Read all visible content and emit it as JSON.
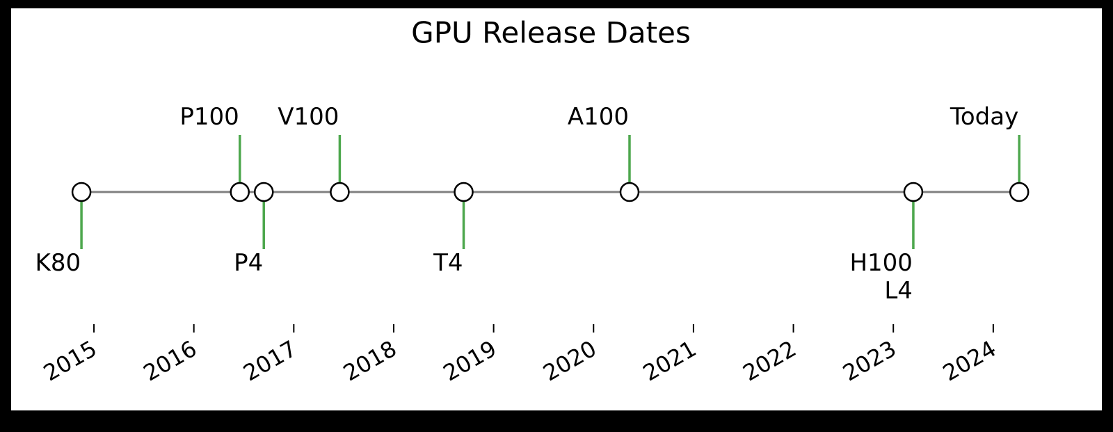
{
  "chart_data": {
    "type": "timeline",
    "title": "GPU Release Dates",
    "categories": [
      "K80",
      "P100",
      "P4",
      "V100",
      "T4",
      "A100",
      "H100\nL4",
      "Today"
    ],
    "x": [
      2014.875,
      2016.46,
      2016.7,
      2017.46,
      2018.7,
      2020.36,
      2023.2,
      2024.26
    ],
    "levels": [
      -1,
      1,
      -1,
      1,
      -1,
      1,
      -1,
      1
    ],
    "xlim": [
      2014.77,
      2024.37
    ],
    "xticks": [
      2015,
      2016,
      2017,
      2018,
      2019,
      2020,
      2021,
      2022,
      2023,
      2024
    ],
    "line_color": "#808080",
    "stem_color": "#3a9e3a"
  }
}
